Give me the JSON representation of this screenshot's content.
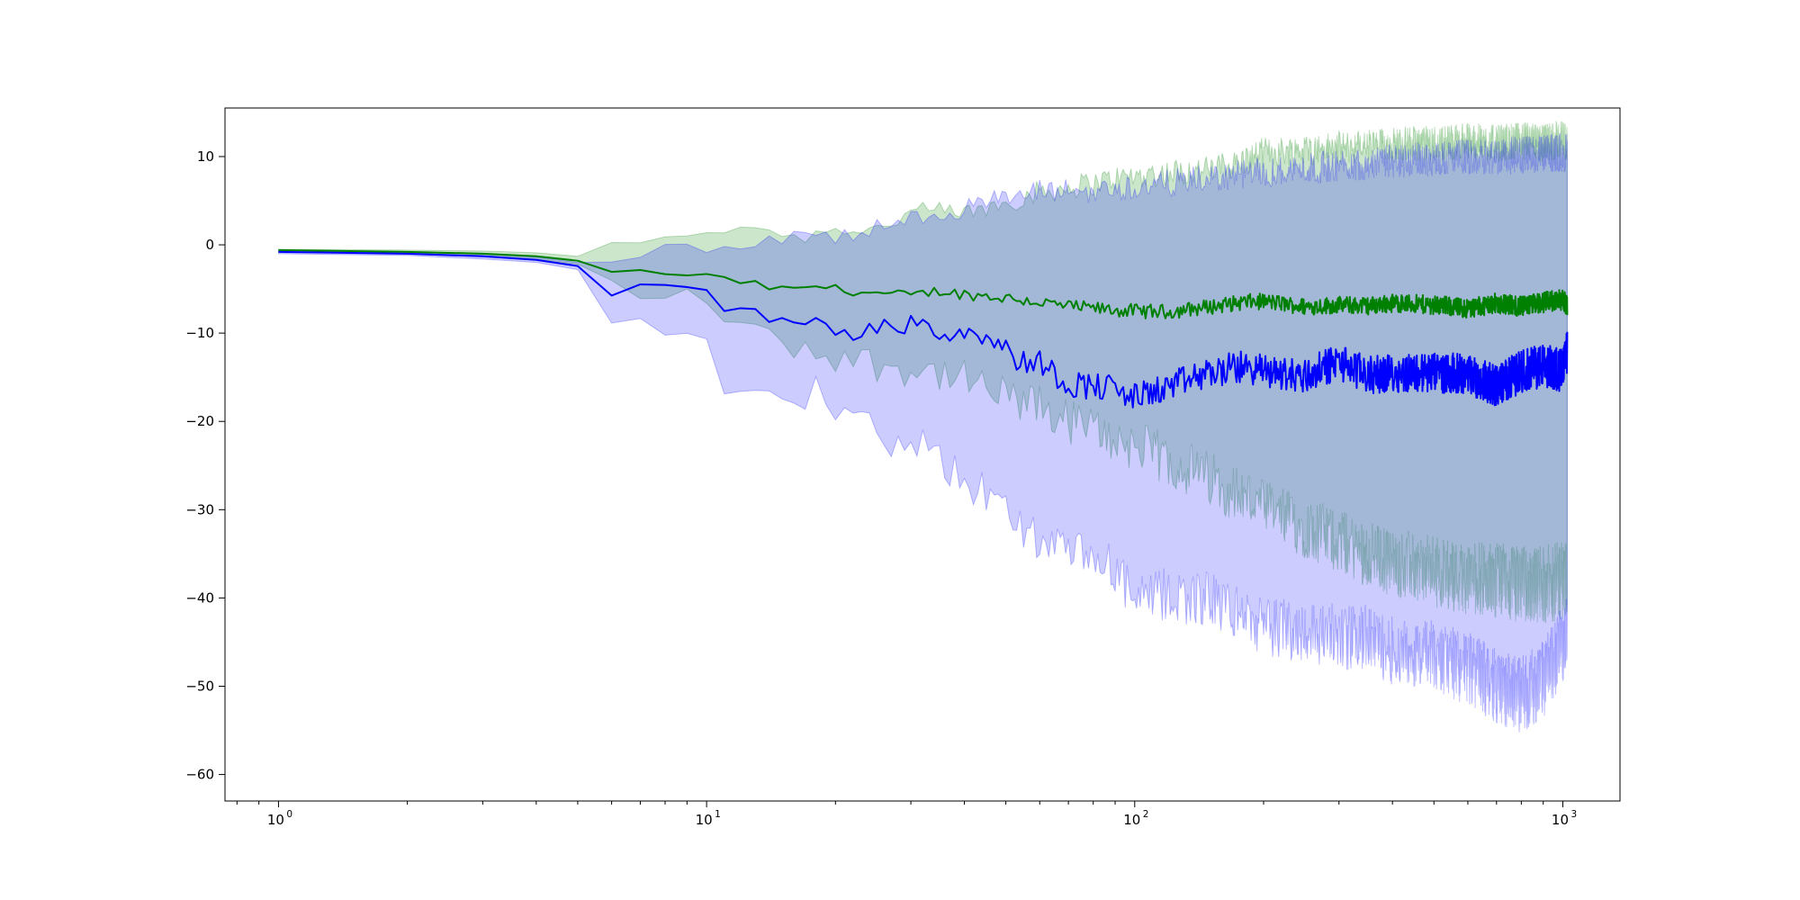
{
  "chart_data": {
    "type": "line",
    "title": "",
    "xlabel": "",
    "ylabel": "",
    "x_scale": "log",
    "xlim": [
      0.75,
      1360
    ],
    "ylim": [
      -63,
      15.5
    ],
    "grid": false,
    "legend": null,
    "x_ticks": [
      {
        "value": 1,
        "base": "10",
        "exp": "0"
      },
      {
        "value": 10,
        "base": "10",
        "exp": "1"
      },
      {
        "value": 100,
        "base": "10",
        "exp": "2"
      },
      {
        "value": 1000,
        "base": "10",
        "exp": "3"
      }
    ],
    "y_ticks": [
      {
        "value": 10,
        "label": "10"
      },
      {
        "value": 0,
        "label": "0"
      },
      {
        "value": -10,
        "label": "−10"
      },
      {
        "value": -20,
        "label": "−20"
      },
      {
        "value": -30,
        "label": "−30"
      },
      {
        "value": -40,
        "label": "−40"
      },
      {
        "value": -50,
        "label": "−50"
      },
      {
        "value": -60,
        "label": "−60"
      }
    ],
    "series": [
      {
        "color": "#008000",
        "band_color": "#008000",
        "band_opacity": 0.2,
        "x": [
          1,
          2,
          3,
          4,
          5,
          6,
          7,
          8,
          9,
          10,
          12,
          14,
          16,
          18,
          20,
          25,
          30,
          35,
          40,
          50,
          60,
          70,
          80,
          90,
          100,
          120,
          150,
          180,
          200,
          250,
          300,
          350,
          400,
          500,
          600,
          700,
          800,
          900,
          1000,
          1024
        ],
        "mean": [
          -0.6,
          -0.8,
          -1.0,
          -1.3,
          -1.8,
          -2.9,
          -3.1,
          -3.3,
          -3.3,
          -3.6,
          -4.2,
          -4.8,
          -5.2,
          -4.6,
          -5.0,
          -5.5,
          -5.8,
          -5.2,
          -5.6,
          -6.0,
          -6.5,
          -7.0,
          -7.2,
          -7.4,
          -7.5,
          -7.6,
          -7.0,
          -6.5,
          -6.4,
          -7.0,
          -6.8,
          -6.9,
          -6.6,
          -6.8,
          -7.2,
          -6.6,
          -7.0,
          -6.5,
          -6.2,
          -6.8
        ],
        "upper": [
          -0.5,
          -0.6,
          -0.7,
          -0.9,
          -1.3,
          0.6,
          -0.2,
          0.6,
          1.2,
          1.5,
          2.2,
          1.8,
          0.8,
          1.2,
          2.0,
          1.8,
          3.6,
          3.8,
          3.5,
          4.8,
          6.0,
          6.5,
          7.0,
          7.5,
          7.8,
          8.2,
          8.5,
          9.5,
          10.5,
          10.8,
          11.0,
          11.2,
          11.5,
          11.5,
          11.8,
          11.5,
          11.8,
          11.5,
          12.0,
          11.5
        ],
        "lower": [
          -0.8,
          -1.0,
          -1.2,
          -1.6,
          -2.2,
          -4.7,
          -5.1,
          -5.7,
          -6.2,
          -6.4,
          -8.8,
          -10.8,
          -11.4,
          -12.0,
          -12.5,
          -13.5,
          -14.0,
          -14.5,
          -15.5,
          -17.5,
          -18.5,
          -20.0,
          -21.0,
          -22.0,
          -22.8,
          -24.5,
          -26.5,
          -28.5,
          -30.0,
          -32.0,
          -33.5,
          -35.0,
          -36.0,
          -37.0,
          -37.8,
          -38.0,
          -38.5,
          -38.5,
          -38.0,
          -37.5
        ]
      },
      {
        "color": "#0000ff",
        "band_color": "#0000ff",
        "band_opacity": 0.2,
        "x": [
          1,
          2,
          3,
          4,
          5,
          6,
          7,
          8,
          9,
          10,
          11,
          12,
          13,
          14,
          15,
          16,
          17,
          18,
          20,
          22,
          24,
          26,
          28,
          30,
          33,
          36,
          40,
          45,
          50,
          55,
          60,
          70,
          80,
          90,
          100,
          120,
          150,
          180,
          200,
          250,
          300,
          350,
          400,
          500,
          600,
          700,
          800,
          900,
          1000,
          1024
        ],
        "mean": [
          -0.8,
          -1.0,
          -1.3,
          -1.7,
          -2.4,
          -5.3,
          -4.6,
          -4.6,
          -4.8,
          -5.6,
          -8.0,
          -6.9,
          -7.4,
          -8.4,
          -9.1,
          -9.1,
          -8.5,
          -7.7,
          -9.2,
          -10.4,
          -9.0,
          -9.4,
          -10.1,
          -8.3,
          -8.9,
          -10.3,
          -9.7,
          -10.0,
          -11.9,
          -13.4,
          -13.2,
          -15.8,
          -15.9,
          -16.4,
          -17.3,
          -16.1,
          -14.5,
          -13.8,
          -14.3,
          -14.9,
          -13.2,
          -14.8,
          -14.5,
          -14.5,
          -14.6,
          -16.0,
          -14.3,
          -13.7,
          -14.2,
          -12.2
        ],
        "upper": [
          -0.6,
          -0.8,
          -1.0,
          -1.4,
          -2.0,
          -1.7,
          -1.0,
          -0.6,
          -0.5,
          -0.4,
          -0.2,
          0.2,
          0.4,
          1.0,
          0.6,
          0.8,
          1.0,
          0.4,
          0.8,
          1.2,
          1.6,
          2.2,
          2.6,
          3.0,
          3.4,
          3.8,
          4.2,
          4.8,
          5.2,
          5.6,
          6.0,
          6.2,
          6.0,
          6.4,
          6.5,
          7.0,
          7.5,
          8.0,
          8.2,
          8.6,
          9.0,
          9.2,
          9.5,
          9.8,
          10.0,
          10.0,
          10.2,
          10.3,
          10.5,
          10.4
        ],
        "lower": [
          -1.0,
          -1.2,
          -1.6,
          -2.0,
          -2.8,
          -10.0,
          -8.8,
          -9.4,
          -10.4,
          -12.0,
          -15.6,
          -15.4,
          -15.8,
          -17.6,
          -18.6,
          -18.8,
          -19.4,
          -16.4,
          -20.0,
          -20.6,
          -20.4,
          -21.2,
          -23.0,
          -21.6,
          -23.6,
          -25.4,
          -26.4,
          -28.4,
          -30.2,
          -32.2,
          -33.4,
          -35.2,
          -35.8,
          -36.6,
          -40.6,
          -39.6,
          -40.2,
          -42.0,
          -43.4,
          -43.6,
          -44.4,
          -44.6,
          -46.0,
          -46.6,
          -48.0,
          -50.0,
          -51.0,
          -49.2,
          -45.0,
          -43.8
        ]
      }
    ]
  }
}
